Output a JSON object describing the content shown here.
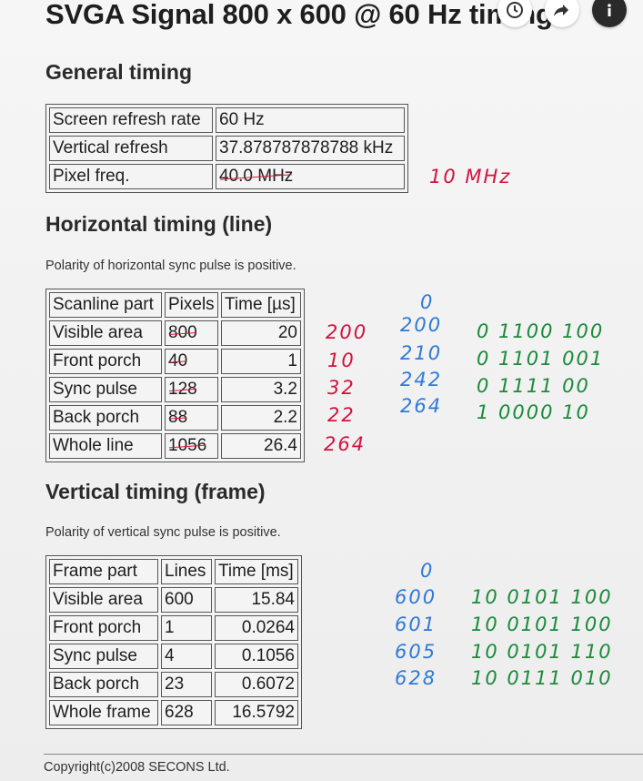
{
  "title": "SVGA Signal 800 x 600 @ 60 Hz timing",
  "general": {
    "heading": "General timing",
    "rows": [
      {
        "label": "Screen refresh rate",
        "value": "60 Hz"
      },
      {
        "label": "Vertical refresh",
        "value": "37.878787878788 kHz"
      },
      {
        "label": "Pixel freq.",
        "value": "40.0 MHz"
      }
    ],
    "annotation": "10 MHz"
  },
  "horizontal": {
    "heading": "Horizontal timing (line)",
    "note": "Polarity of horizontal sync pulse is positive.",
    "headers": [
      "Scanline part",
      "Pixels",
      "Time [µs]"
    ],
    "rows": [
      {
        "part": "Visible area",
        "pixels": "800",
        "time": "20"
      },
      {
        "part": "Front porch",
        "pixels": "40",
        "time": "1"
      },
      {
        "part": "Sync pulse",
        "pixels": "128",
        "time": "3.2"
      },
      {
        "part": "Back porch",
        "pixels": "88",
        "time": "2.2"
      },
      {
        "part": "Whole line",
        "pixels": "1056",
        "time": "26.4"
      }
    ],
    "red_notes": [
      "200",
      "10",
      "32",
      "22",
      "264"
    ],
    "blue_notes": [
      "0",
      "200",
      "210",
      "242",
      "264"
    ],
    "green_notes": [
      "0  1100  100",
      "0  1101  001",
      "0  1111  00",
      "1  0000  10"
    ]
  },
  "vertical": {
    "heading": "Vertical timing (frame)",
    "note": "Polarity of vertical sync pulse is positive.",
    "headers": [
      "Frame part",
      "Lines",
      "Time [ms]"
    ],
    "rows": [
      {
        "part": "Visible area",
        "lines": "600",
        "time": "15.84"
      },
      {
        "part": "Front porch",
        "lines": "1",
        "time": "0.0264"
      },
      {
        "part": "Sync pulse",
        "lines": "4",
        "time": "0.1056"
      },
      {
        "part": "Back porch",
        "lines": "23",
        "time": "0.6072"
      },
      {
        "part": "Whole frame",
        "lines": "628",
        "time": "16.5792"
      }
    ],
    "blue_notes": [
      "0",
      "600",
      "601",
      "605",
      "628"
    ],
    "green_notes": [
      "10  0101  100",
      "10  0101  100",
      "10  0101  110",
      "10  0111  010"
    ]
  },
  "footer": "Copyright(c)2008 SECONS Ltd.",
  "icons": [
    "clock-icon",
    "share-icon",
    "info-icon"
  ]
}
